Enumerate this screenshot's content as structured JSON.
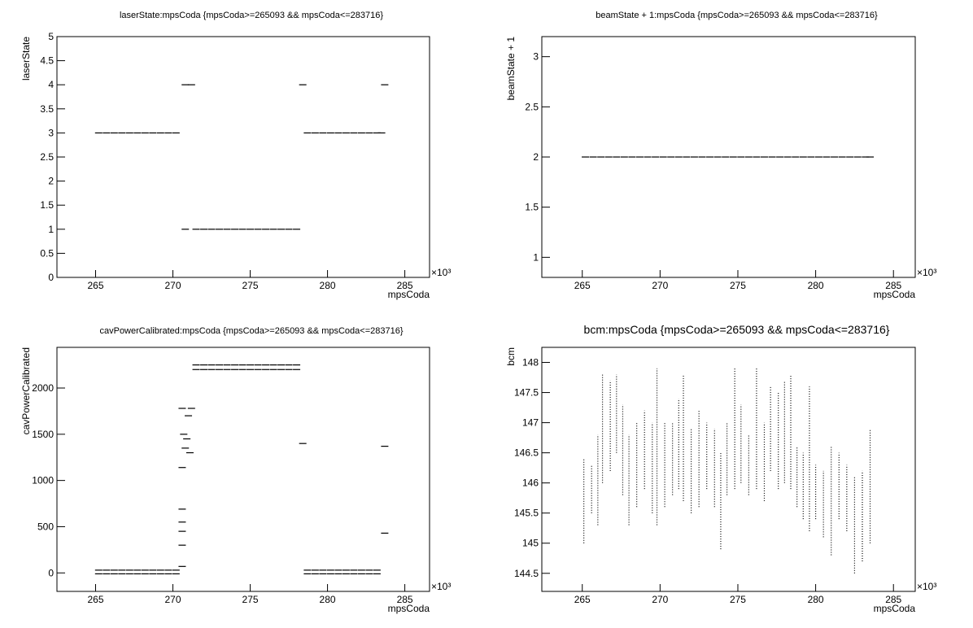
{
  "chart_data": [
    {
      "type": "scatter",
      "title": "laserState:mpsCoda {mpsCoda>=265093 && mpsCoda<=283716}",
      "x_label": "mpsCoda",
      "y_label": "laserState",
      "x_exponent": "×10³",
      "xlim": [
        262.5,
        286.6
      ],
      "xticks": [
        265,
        270,
        275,
        280,
        285
      ],
      "ylim": [
        0,
        5
      ],
      "yticks": [
        0,
        0.5,
        1,
        1.5,
        2,
        2.5,
        3,
        3.5,
        4,
        4.5,
        5
      ],
      "color": "#000000",
      "x": [
        265.2,
        265.7,
        266.2,
        266.7,
        267.2,
        267.7,
        268.2,
        268.7,
        269.2,
        269.7,
        270.2,
        270.8,
        271.2,
        270.8,
        271.5,
        272.0,
        272.5,
        273.0,
        273.5,
        274.0,
        274.5,
        275.0,
        275.5,
        276.0,
        276.5,
        277.0,
        277.5,
        278.0,
        278.7,
        279.2,
        279.7,
        280.2,
        280.7,
        281.2,
        281.7,
        282.2,
        282.7,
        283.2,
        283.5,
        278.4,
        283.7
      ],
      "y": [
        3,
        3,
        3,
        3,
        3,
        3,
        3,
        3,
        3,
        3,
        3,
        4,
        4,
        1,
        1,
        1,
        1,
        1,
        1,
        1,
        1,
        1,
        1,
        1,
        1,
        1,
        1,
        1,
        3,
        3,
        3,
        3,
        3,
        3,
        3,
        3,
        3,
        3,
        3,
        4,
        4
      ]
    },
    {
      "type": "scatter",
      "title": "beamState + 1:mpsCoda {mpsCoda>=265093 && mpsCoda<=283716}",
      "x_label": "mpsCoda",
      "y_label": "beamState + 1",
      "x_exponent": "×10³",
      "xlim": [
        262.4,
        286.4
      ],
      "xticks": [
        265,
        270,
        275,
        280,
        285
      ],
      "ylim": [
        0.8,
        3.2
      ],
      "yticks": [
        1,
        1.5,
        2,
        2.5,
        3
      ],
      "color": "#000000",
      "x": [
        265.2,
        265.7,
        266.2,
        266.7,
        267.2,
        267.7,
        268.2,
        268.7,
        269.2,
        269.7,
        270.2,
        270.7,
        271.2,
        271.7,
        272.2,
        272.7,
        273.2,
        273.7,
        274.2,
        274.7,
        275.2,
        275.7,
        276.2,
        276.7,
        277.2,
        277.7,
        278.2,
        278.7,
        279.2,
        279.7,
        280.2,
        280.7,
        281.2,
        281.7,
        282.2,
        282.7,
        283.2,
        283.5
      ],
      "y": [
        2,
        2,
        2,
        2,
        2,
        2,
        2,
        2,
        2,
        2,
        2,
        2,
        2,
        2,
        2,
        2,
        2,
        2,
        2,
        2,
        2,
        2,
        2,
        2,
        2,
        2,
        2,
        2,
        2,
        2,
        2,
        2,
        2,
        2,
        2,
        2,
        2,
        2
      ]
    },
    {
      "type": "scatter",
      "title": "cavPowerCalibrated:mpsCoda {mpsCoda>=265093 && mpsCoda<=283716}",
      "x_label": "mpsCoda",
      "y_label": "cavPowerCalibrated",
      "x_exponent": "×10³",
      "xlim": [
        262.5,
        286.6
      ],
      "xticks": [
        265,
        270,
        275,
        280,
        285
      ],
      "ylim": [
        -200,
        2440
      ],
      "yticks": [
        0,
        500,
        1000,
        1500,
        2000
      ],
      "color": "#000000",
      "x": [
        265.2,
        265.7,
        266.2,
        266.7,
        267.2,
        267.7,
        268.2,
        268.7,
        269.2,
        269.7,
        270.2,
        265.2,
        265.7,
        266.2,
        266.7,
        267.2,
        267.7,
        268.2,
        268.7,
        269.2,
        269.7,
        270.2,
        278.7,
        279.2,
        279.7,
        280.2,
        280.7,
        281.2,
        281.7,
        282.2,
        282.7,
        283.2,
        278.7,
        279.2,
        279.7,
        280.2,
        280.7,
        281.2,
        281.7,
        282.2,
        282.7,
        283.2,
        270.6,
        270.7,
        270.8,
        271.0,
        271.1,
        270.9,
        271.2,
        271.5,
        272.0,
        272.5,
        273.0,
        273.5,
        274.0,
        274.5,
        275.0,
        275.5,
        276.0,
        276.5,
        277.0,
        277.5,
        278.0,
        271.5,
        272.0,
        272.5,
        273.0,
        273.5,
        274.0,
        274.5,
        275.0,
        275.5,
        276.0,
        276.5,
        277.0,
        277.5,
        278.0,
        278.4,
        283.7,
        283.7,
        270.6,
        270.6,
        270.6,
        270.6,
        270.6,
        270.6
      ],
      "y": [
        30,
        30,
        30,
        30,
        30,
        30,
        30,
        30,
        30,
        30,
        30,
        -10,
        -10,
        -10,
        -10,
        -10,
        -10,
        -10,
        -10,
        -10,
        -10,
        -10,
        30,
        30,
        30,
        30,
        30,
        30,
        30,
        30,
        30,
        30,
        -10,
        -10,
        -10,
        -10,
        -10,
        -10,
        -10,
        -10,
        -10,
        -10,
        1780,
        1500,
        1350,
        1700,
        1300,
        1450,
        1780,
        2200,
        2200,
        2200,
        2200,
        2200,
        2200,
        2200,
        2200,
        2200,
        2200,
        2200,
        2200,
        2200,
        2200,
        2250,
        2250,
        2250,
        2250,
        2250,
        2250,
        2250,
        2250,
        2250,
        2250,
        2250,
        2250,
        2250,
        2250,
        1400,
        1370,
        430,
        300,
        450,
        550,
        690,
        1140,
        70
      ]
    },
    {
      "type": "range",
      "title": "bcm:mpsCoda {mpsCoda>=265093 && mpsCoda<=283716}",
      "x_label": "mpsCoda",
      "y_label": "bcm",
      "x_exponent": "×10³",
      "xlim": [
        262.4,
        286.4
      ],
      "xticks": [
        265,
        270,
        275,
        280,
        285
      ],
      "ylim": [
        144.2,
        148.25
      ],
      "yticks": [
        144.5,
        145,
        145.5,
        146,
        146.5,
        147,
        147.5,
        148
      ],
      "color": "#000000",
      "x": [
        265.1,
        265.6,
        266.0,
        266.3,
        266.8,
        267.2,
        267.6,
        268.0,
        268.5,
        269.0,
        269.5,
        269.8,
        270.3,
        270.8,
        271.2,
        271.5,
        272.0,
        272.5,
        273.0,
        273.5,
        273.9,
        274.3,
        274.8,
        275.2,
        275.7,
        276.2,
        276.7,
        277.1,
        277.6,
        278.0,
        278.4,
        278.8,
        279.2,
        279.6,
        280.0,
        280.5,
        281.0,
        281.5,
        282.0,
        282.5,
        283.0,
        283.5
      ],
      "low": [
        145.0,
        145.5,
        145.3,
        146.0,
        146.2,
        146.5,
        145.8,
        145.3,
        145.6,
        145.9,
        145.5,
        145.3,
        145.6,
        145.8,
        145.9,
        145.7,
        145.5,
        145.6,
        145.9,
        145.6,
        144.9,
        145.8,
        145.9,
        146.0,
        145.8,
        145.9,
        145.7,
        146.2,
        145.9,
        146.0,
        145.9,
        145.6,
        145.4,
        145.2,
        145.4,
        145.1,
        144.8,
        145.4,
        145.2,
        144.5,
        144.7,
        145.0
      ],
      "high": [
        146.4,
        146.3,
        146.8,
        147.8,
        147.7,
        147.8,
        147.3,
        146.8,
        147.0,
        147.2,
        147.0,
        147.9,
        147.0,
        147.0,
        147.4,
        147.8,
        146.9,
        147.2,
        147.0,
        146.9,
        146.5,
        147.0,
        147.9,
        147.3,
        146.8,
        147.9,
        147.0,
        147.6,
        147.5,
        147.7,
        147.8,
        146.6,
        146.5,
        147.6,
        146.3,
        146.2,
        146.6,
        146.5,
        146.3,
        146.1,
        146.2,
        146.9
      ]
    }
  ]
}
